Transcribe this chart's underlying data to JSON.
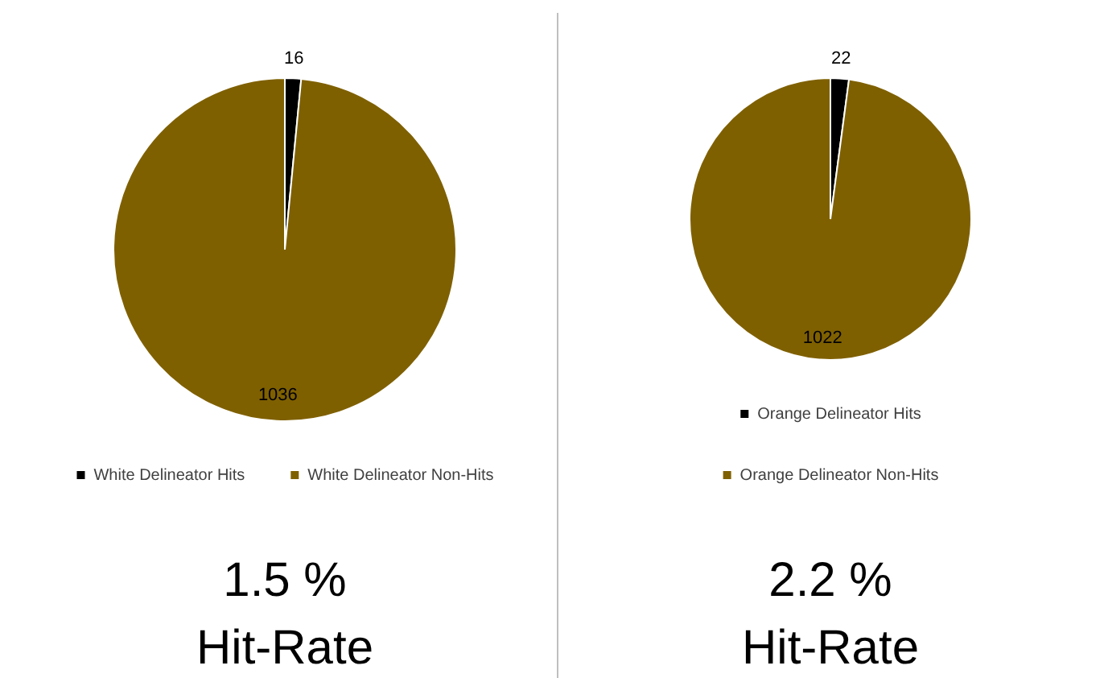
{
  "chart_data": [
    {
      "type": "pie",
      "categories": [
        "White Delineator Hits",
        "White Delineator Non-Hits"
      ],
      "values": [
        16,
        1036
      ],
      "colors": [
        "#000000",
        "#7f6000"
      ],
      "data_labels": true,
      "legend": "bottom",
      "annotations": [
        "1.5 %",
        "Hit-Rate"
      ]
    },
    {
      "type": "pie",
      "categories": [
        "Orange Delineator Hits",
        "Orange Delineator Non-Hits"
      ],
      "values": [
        22,
        1022
      ],
      "colors": [
        "#000000",
        "#7f6000"
      ],
      "data_labels": true,
      "legend": "bottom",
      "annotations": [
        "2.2 %",
        "Hit-Rate"
      ]
    }
  ]
}
